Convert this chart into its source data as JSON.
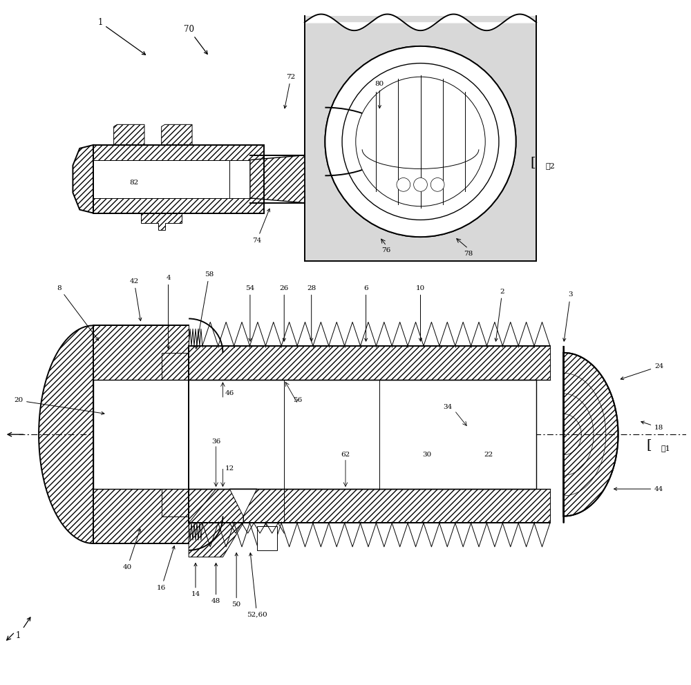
{
  "bg_color": "#ffffff",
  "line_color": "#000000",
  "fig_width": 10.0,
  "fig_height": 9.92,
  "lw_main": 1.4,
  "lw_med": 1.0,
  "lw_thin": 0.7,
  "lw_very_thin": 0.5,
  "hatch_density": "////",
  "fig1_label": "图1",
  "fig2_label": "图2",
  "top_labels": [
    "8",
    "42",
    "4",
    "58",
    "54",
    "26",
    "28",
    "6",
    "10",
    "2",
    "3"
  ],
  "bottom_labels": [
    "40",
    "16",
    "14",
    "48",
    "50",
    "52,60"
  ],
  "right_labels": [
    "24",
    "18",
    "44"
  ],
  "interior_labels": [
    "20",
    "46",
    "12",
    "56",
    "34",
    "36",
    "62",
    "30",
    "22"
  ],
  "fig1_corner_label": "1",
  "fig2_labels": [
    "1",
    "70",
    "72",
    "74",
    "76",
    "78",
    "80",
    "82"
  ]
}
